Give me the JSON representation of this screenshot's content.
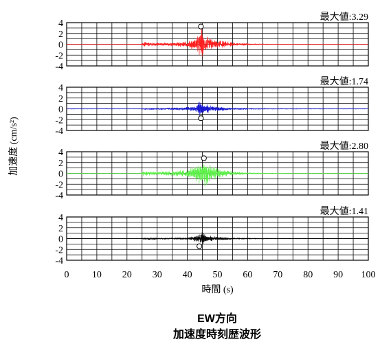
{
  "chart_data": {
    "type": "line",
    "layout": "stacked-subplots",
    "ylabel": "加速度 (cm/s²)",
    "xlabel": "時間 (s)",
    "xlim": [
      0,
      100
    ],
    "x_ticks": [
      0,
      10,
      20,
      30,
      40,
      50,
      60,
      70,
      80,
      90,
      100
    ],
    "ylim": [
      -4,
      4
    ],
    "y_ticks": [
      4,
      2,
      0,
      -2,
      -4
    ],
    "grid": true,
    "max_label_prefix": "最大値:",
    "panels": [
      {
        "name": "panel-1",
        "color": "#ff2020",
        "max_value": "3.29",
        "max_point": {
          "x": 44.5,
          "y": 3.29
        },
        "envelope": [
          [
            0,
            0.02
          ],
          [
            24.5,
            0.02
          ],
          [
            25.5,
            0.45
          ],
          [
            29,
            0.3
          ],
          [
            33,
            0.3
          ],
          [
            37,
            0.38
          ],
          [
            40,
            0.55
          ],
          [
            42,
            0.9
          ],
          [
            43.5,
            1.5
          ],
          [
            44.5,
            3.29
          ],
          [
            45.5,
            2.1
          ],
          [
            47,
            1.2
          ],
          [
            50,
            0.75
          ],
          [
            54,
            0.4
          ],
          [
            58,
            0.22
          ],
          [
            62,
            0.12
          ],
          [
            68,
            0.05
          ],
          [
            75,
            0.03
          ],
          [
            100,
            0.02
          ]
        ]
      },
      {
        "name": "panel-2",
        "color": "#1818d0",
        "max_value": "1.74",
        "max_point": {
          "x": 44.5,
          "y": -1.74
        },
        "envelope": [
          [
            0,
            0.05
          ],
          [
            24.5,
            0.05
          ],
          [
            25.5,
            0.15
          ],
          [
            30,
            0.15
          ],
          [
            35,
            0.2
          ],
          [
            40,
            0.3
          ],
          [
            42.5,
            0.6
          ],
          [
            44,
            1.4
          ],
          [
            45,
            1.2
          ],
          [
            46.5,
            0.8
          ],
          [
            49,
            0.45
          ],
          [
            52,
            0.35
          ],
          [
            55,
            0.2
          ],
          [
            60,
            0.12
          ],
          [
            70,
            0.07
          ],
          [
            100,
            0.05
          ]
        ]
      },
      {
        "name": "panel-3",
        "color": "#5ef04a",
        "max_value": "2.80",
        "max_point": {
          "x": 45.5,
          "y": 2.8
        },
        "envelope": [
          [
            0,
            0.02
          ],
          [
            24.5,
            0.02
          ],
          [
            25.5,
            0.5
          ],
          [
            29,
            0.35
          ],
          [
            33,
            0.35
          ],
          [
            37,
            0.5
          ],
          [
            40,
            0.75
          ],
          [
            42.5,
            1.2
          ],
          [
            44,
            2.0
          ],
          [
            45.5,
            2.8
          ],
          [
            47,
            1.8
          ],
          [
            49,
            1.1
          ],
          [
            52,
            0.6
          ],
          [
            56,
            0.3
          ],
          [
            60,
            0.15
          ],
          [
            66,
            0.06
          ],
          [
            75,
            0.03
          ],
          [
            100,
            0.02
          ]
        ]
      },
      {
        "name": "panel-4",
        "color": "#000000",
        "max_value": "1.41",
        "max_point": {
          "x": 44,
          "y": -1.41
        },
        "envelope": [
          [
            0,
            0.01
          ],
          [
            24.5,
            0.01
          ],
          [
            25.5,
            0.15
          ],
          [
            28,
            0.25
          ],
          [
            30,
            0.12
          ],
          [
            35,
            0.15
          ],
          [
            40,
            0.2
          ],
          [
            42,
            0.4
          ],
          [
            43.5,
            1.0
          ],
          [
            44.5,
            1.3
          ],
          [
            46,
            0.8
          ],
          [
            48,
            0.45
          ],
          [
            51,
            0.3
          ],
          [
            55,
            0.18
          ],
          [
            60,
            0.1
          ],
          [
            70,
            0.05
          ],
          [
            100,
            0.03
          ]
        ]
      }
    ]
  },
  "caption": {
    "line1": "EW方向",
    "line2": "加速度時刻歴波形"
  }
}
